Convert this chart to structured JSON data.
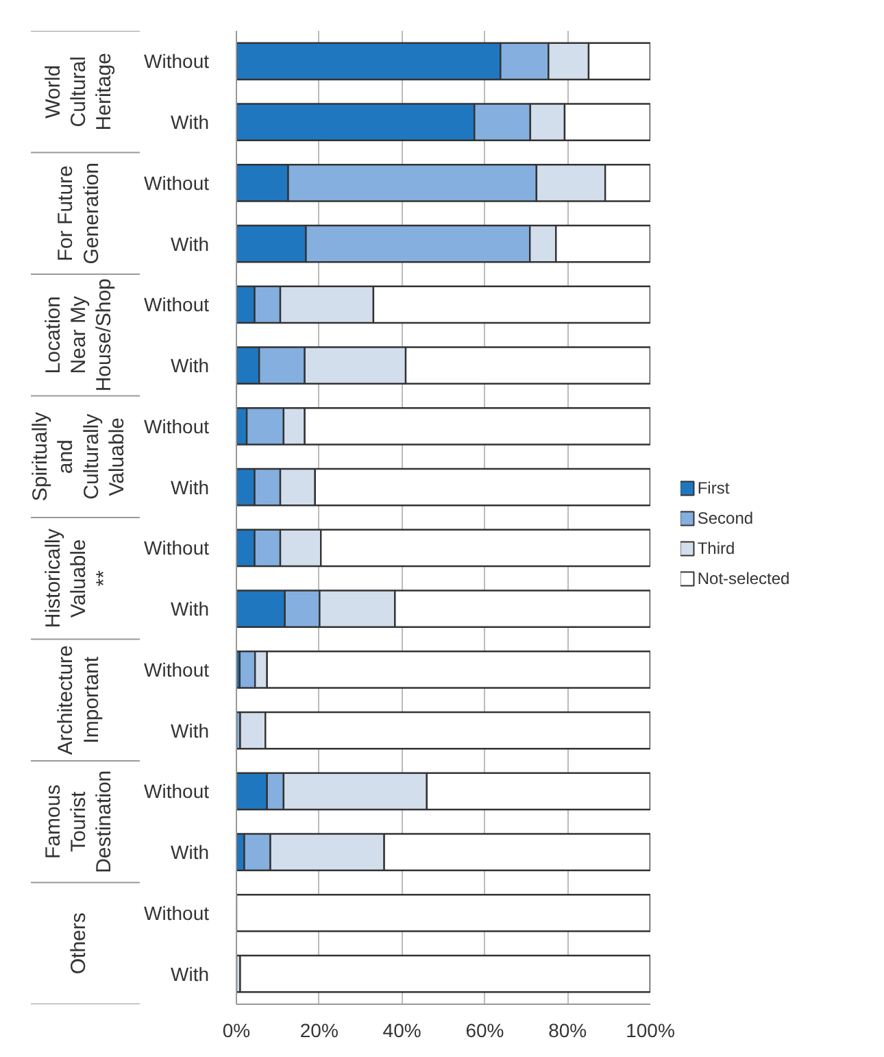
{
  "chart_data": {
    "type": "bar",
    "orientation": "horizontal",
    "stacked": true,
    "categories": [
      "Without",
      "With",
      "Without",
      "With",
      "Without",
      "With",
      "Without",
      "With",
      "Without",
      "With",
      "Without",
      "With",
      "Without",
      "With",
      "Without",
      "With"
    ],
    "series": [
      {
        "name": "First",
        "color": "#1f77c0",
        "values": [
          63.8,
          57.5,
          12.5,
          16.8,
          4.4,
          5.5,
          2.5,
          4.4,
          4.4,
          11.7,
          0.8,
          0,
          7.4,
          1.9,
          0,
          0
        ]
      },
      {
        "name": "Second",
        "color": "#84afdf",
        "values": [
          11.6,
          13.5,
          60.0,
          54.1,
          6.2,
          11.0,
          8.9,
          6.2,
          6.2,
          8.4,
          3.7,
          0.9,
          4.0,
          6.3,
          0,
          0
        ]
      },
      {
        "name": "Third",
        "color": "#d3deec",
        "values": [
          9.7,
          8.3,
          16.6,
          6.3,
          22.5,
          24.4,
          5.1,
          8.4,
          9.8,
          18.2,
          2.9,
          6.1,
          34.6,
          27.5,
          0,
          0.9
        ]
      },
      {
        "name": "Not-selected",
        "color": "#ffffff",
        "values": [
          14.9,
          20.7,
          10.9,
          22.8,
          66.9,
          59.1,
          83.5,
          81.0,
          79.6,
          61.7,
          92.6,
          93.0,
          54.0,
          64.3,
          100,
          99.1
        ]
      }
    ],
    "annotations": [
      "World\nCultural\nHeritage",
      "For Future\nGeneration",
      "Location\nNear My\nHouse/Shop",
      "Spiritually\nand\nCulturally\nValuable",
      "Historically\nValuable\n**",
      "Architecture\nImportant",
      "Famous\nTourist\nDestination",
      "Others"
    ],
    "xlim": [
      0,
      100
    ],
    "xticks": [
      {
        "value": 0,
        "label": "0%"
      },
      {
        "value": 20,
        "label": "20%"
      },
      {
        "value": 40,
        "label": "40%"
      },
      {
        "value": 60,
        "label": "60%"
      },
      {
        "value": 80,
        "label": "80%"
      },
      {
        "value": 100,
        "label": "100%"
      }
    ],
    "grid": "x",
    "legend": "right"
  }
}
